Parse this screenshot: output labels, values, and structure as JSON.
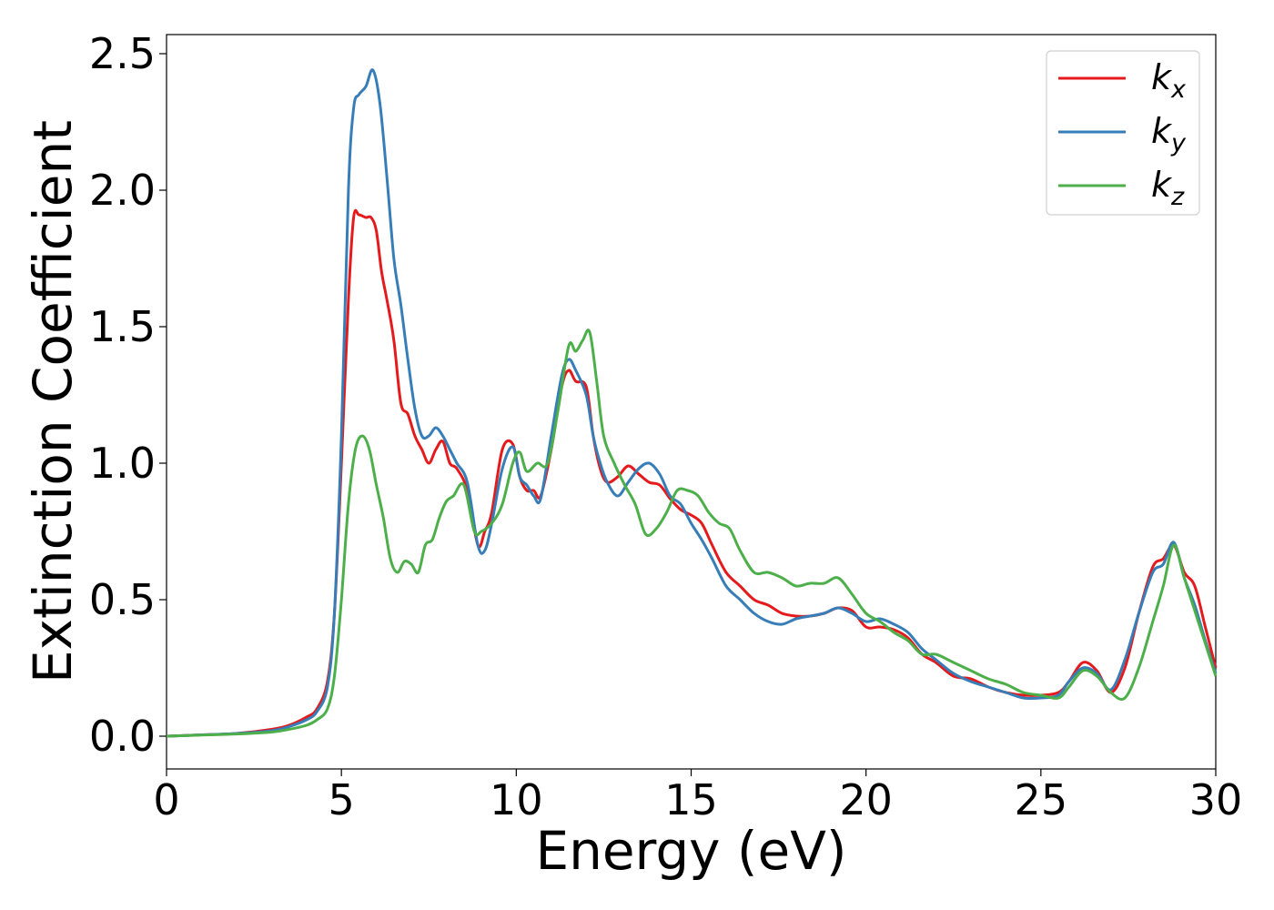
{
  "chart_data": {
    "type": "line",
    "title": "",
    "xlabel": "Energy (eV)",
    "ylabel": "Extinction Coefficient",
    "xlim": [
      0,
      30
    ],
    "ylim": [
      -0.12,
      2.57
    ],
    "xticks": [
      0,
      5,
      10,
      15,
      20,
      25,
      30
    ],
    "xtick_labels": [
      "0",
      "5",
      "10",
      "15",
      "20",
      "25",
      "30"
    ],
    "yticks": [
      0.0,
      0.5,
      1.0,
      1.5,
      2.0,
      2.5
    ],
    "ytick_labels": [
      "0.0",
      "0.5",
      "1.0",
      "1.5",
      "2.0",
      "2.5"
    ],
    "grid": false,
    "legend_position": "top-right",
    "series": [
      {
        "name": "k",
        "subscript": "x",
        "color": "#e41a1c",
        "x": [
          0,
          1,
          2,
          3,
          3.5,
          4,
          4.3,
          4.6,
          4.8,
          5.0,
          5.2,
          5.35,
          5.5,
          5.7,
          5.85,
          6.0,
          6.15,
          6.3,
          6.5,
          6.7,
          6.9,
          7.1,
          7.3,
          7.5,
          7.7,
          7.9,
          8.1,
          8.3,
          8.6,
          8.9,
          9.1,
          9.3,
          9.6,
          9.9,
          10.1,
          10.3,
          10.5,
          10.7,
          11.0,
          11.3,
          11.5,
          11.7,
          12.0,
          12.2,
          12.4,
          12.6,
          12.9,
          13.2,
          13.5,
          13.8,
          14.1,
          14.4,
          14.7,
          15.0,
          15.3,
          15.6,
          16.0,
          16.4,
          16.8,
          17.2,
          17.6,
          18.0,
          18.4,
          18.8,
          19.2,
          19.6,
          20.0,
          20.4,
          20.8,
          21.2,
          21.6,
          22.0,
          22.5,
          23.0,
          23.5,
          24.0,
          24.5,
          25.0,
          25.5,
          25.8,
          26.2,
          26.6,
          27.0,
          27.4,
          27.8,
          28.2,
          28.5,
          28.8,
          29.1,
          29.4,
          29.7,
          30.0
        ],
        "y": [
          0.0,
          0.005,
          0.01,
          0.025,
          0.04,
          0.07,
          0.1,
          0.2,
          0.45,
          1.0,
          1.6,
          1.9,
          1.91,
          1.9,
          1.9,
          1.85,
          1.7,
          1.6,
          1.45,
          1.22,
          1.18,
          1.1,
          1.05,
          1.0,
          1.05,
          1.08,
          1.0,
          0.98,
          0.9,
          0.7,
          0.75,
          0.82,
          1.05,
          1.07,
          0.95,
          0.9,
          0.9,
          0.88,
          1.05,
          1.28,
          1.34,
          1.3,
          1.28,
          1.1,
          0.98,
          0.93,
          0.95,
          0.99,
          0.96,
          0.93,
          0.92,
          0.87,
          0.83,
          0.81,
          0.78,
          0.7,
          0.6,
          0.55,
          0.5,
          0.48,
          0.45,
          0.44,
          0.44,
          0.45,
          0.47,
          0.46,
          0.4,
          0.4,
          0.39,
          0.36,
          0.3,
          0.27,
          0.22,
          0.21,
          0.18,
          0.16,
          0.15,
          0.15,
          0.16,
          0.2,
          0.27,
          0.24,
          0.16,
          0.25,
          0.45,
          0.62,
          0.65,
          0.7,
          0.6,
          0.55,
          0.4,
          0.25
        ]
      },
      {
        "name": "k",
        "subscript": "y",
        "color": "#377eb8",
        "x": [
          0,
          1,
          2,
          3,
          3.5,
          4,
          4.3,
          4.6,
          4.8,
          5.0,
          5.2,
          5.35,
          5.5,
          5.7,
          5.9,
          6.1,
          6.3,
          6.5,
          6.7,
          6.9,
          7.1,
          7.3,
          7.5,
          7.7,
          7.9,
          8.1,
          8.3,
          8.6,
          8.9,
          9.1,
          9.3,
          9.6,
          9.9,
          10.1,
          10.3,
          10.5,
          10.7,
          11.0,
          11.3,
          11.5,
          11.7,
          12.0,
          12.2,
          12.4,
          12.6,
          12.9,
          13.2,
          13.5,
          13.8,
          14.1,
          14.4,
          14.7,
          15.0,
          15.3,
          15.6,
          16.0,
          16.4,
          16.8,
          17.2,
          17.6,
          18.0,
          18.4,
          18.8,
          19.2,
          19.6,
          20.0,
          20.4,
          20.8,
          21.2,
          21.6,
          22.0,
          22.5,
          23.0,
          23.5,
          24.0,
          24.5,
          25.0,
          25.5,
          25.8,
          26.2,
          26.6,
          27.0,
          27.4,
          27.8,
          28.2,
          28.5,
          28.8,
          29.1,
          29.4,
          29.7,
          30.0
        ],
        "y": [
          0.0,
          0.005,
          0.01,
          0.02,
          0.035,
          0.06,
          0.09,
          0.18,
          0.45,
          1.1,
          2.0,
          2.3,
          2.35,
          2.38,
          2.44,
          2.32,
          2.05,
          1.75,
          1.58,
          1.38,
          1.2,
          1.1,
          1.1,
          1.13,
          1.1,
          1.05,
          1.0,
          0.93,
          0.7,
          0.68,
          0.78,
          0.98,
          1.06,
          0.95,
          0.92,
          0.88,
          0.87,
          1.1,
          1.32,
          1.38,
          1.34,
          1.25,
          1.1,
          1.0,
          0.93,
          0.88,
          0.93,
          0.98,
          1.0,
          0.96,
          0.88,
          0.85,
          0.78,
          0.72,
          0.65,
          0.55,
          0.5,
          0.45,
          0.42,
          0.41,
          0.43,
          0.44,
          0.45,
          0.47,
          0.45,
          0.42,
          0.43,
          0.41,
          0.38,
          0.32,
          0.28,
          0.23,
          0.2,
          0.18,
          0.16,
          0.14,
          0.14,
          0.15,
          0.2,
          0.25,
          0.23,
          0.17,
          0.28,
          0.45,
          0.6,
          0.63,
          0.71,
          0.58,
          0.48,
          0.35,
          0.23
        ]
      },
      {
        "name": "k",
        "subscript": "z",
        "color": "#4daf4a",
        "x": [
          0,
          1,
          2,
          3,
          3.5,
          4,
          4.3,
          4.6,
          4.8,
          5.0,
          5.2,
          5.4,
          5.6,
          5.8,
          6.0,
          6.2,
          6.4,
          6.6,
          6.8,
          7.0,
          7.2,
          7.4,
          7.6,
          7.8,
          8.0,
          8.2,
          8.5,
          8.8,
          9.0,
          9.3,
          9.6,
          9.9,
          10.1,
          10.3,
          10.6,
          10.9,
          11.2,
          11.5,
          11.7,
          11.9,
          12.1,
          12.3,
          12.5,
          12.8,
          13.1,
          13.4,
          13.7,
          14.0,
          14.3,
          14.6,
          14.9,
          15.2,
          15.5,
          15.8,
          16.1,
          16.4,
          16.8,
          17.2,
          17.6,
          18.0,
          18.4,
          18.8,
          19.2,
          19.6,
          20.0,
          20.4,
          20.8,
          21.2,
          21.6,
          22.0,
          22.5,
          23.0,
          23.5,
          24.0,
          24.5,
          25.0,
          25.5,
          25.8,
          26.2,
          26.6,
          27.0,
          27.4,
          27.8,
          28.2,
          28.5,
          28.8,
          29.1,
          29.4,
          29.7,
          30.0
        ],
        "y": [
          0.0,
          0.004,
          0.008,
          0.015,
          0.025,
          0.04,
          0.06,
          0.1,
          0.22,
          0.5,
          0.85,
          1.05,
          1.1,
          1.05,
          0.92,
          0.8,
          0.65,
          0.6,
          0.64,
          0.63,
          0.6,
          0.7,
          0.72,
          0.8,
          0.86,
          0.88,
          0.92,
          0.75,
          0.75,
          0.78,
          0.85,
          1.0,
          1.04,
          0.97,
          1.0,
          1.0,
          1.2,
          1.43,
          1.41,
          1.45,
          1.48,
          1.3,
          1.1,
          1.0,
          0.92,
          0.85,
          0.74,
          0.76,
          0.82,
          0.9,
          0.9,
          0.88,
          0.82,
          0.78,
          0.76,
          0.68,
          0.6,
          0.6,
          0.58,
          0.55,
          0.56,
          0.56,
          0.58,
          0.52,
          0.45,
          0.42,
          0.38,
          0.35,
          0.3,
          0.3,
          0.27,
          0.24,
          0.21,
          0.19,
          0.16,
          0.15,
          0.14,
          0.18,
          0.24,
          0.22,
          0.16,
          0.14,
          0.25,
          0.42,
          0.55,
          0.7,
          0.58,
          0.46,
          0.34,
          0.22
        ]
      }
    ]
  }
}
